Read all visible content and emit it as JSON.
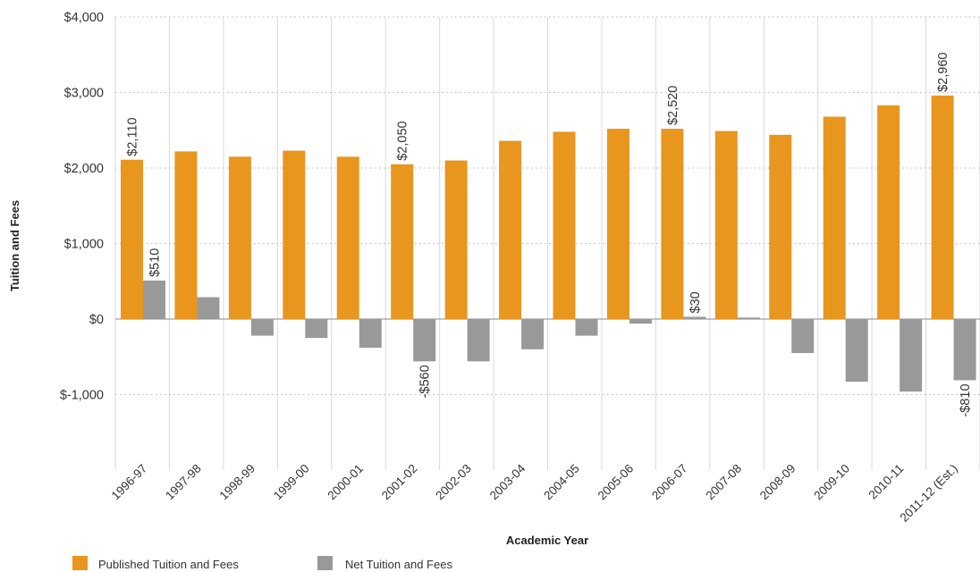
{
  "chart_data": {
    "type": "bar",
    "xlabel": "Academic Year",
    "ylabel": "Tuition and Fees",
    "ylim": [
      -2000,
      4000
    ],
    "yticks": [
      -1000,
      0,
      1000,
      2000,
      3000,
      4000
    ],
    "ytick_labels": [
      "$-1,000",
      "$0",
      "$1,000",
      "$2,000",
      "$3,000",
      "$4,000"
    ],
    "grid": "horizontal dotted",
    "legend_position": "bottom-left",
    "categories": [
      "1996-97",
      "1997-98",
      "1998-99",
      "1999-00",
      "2000-01",
      "2001-02",
      "2002-03",
      "2003-04",
      "2004-05",
      "2005-06",
      "2006-07",
      "2007-08",
      "2008-09",
      "2009-10",
      "2010-11",
      "2011-12 (Est.)"
    ],
    "series": [
      {
        "name": "Published Tuition and Fees",
        "color": "#E8961E",
        "values": [
          2110,
          2220,
          2150,
          2230,
          2150,
          2050,
          2100,
          2360,
          2480,
          2520,
          2520,
          2490,
          2440,
          2680,
          2830,
          2960
        ],
        "data_labels": {
          "0": "$2,110",
          "5": "$2,050",
          "10": "$2,520",
          "15": "$2,960"
        }
      },
      {
        "name": "Net Tuition and Fees",
        "color": "#999999",
        "values": [
          510,
          290,
          -220,
          -250,
          -380,
          -560,
          -560,
          -400,
          -220,
          -60,
          30,
          20,
          -450,
          -830,
          -960,
          -810
        ],
        "data_labels": {
          "0": "$510",
          "5": "-$560",
          "10": "$30",
          "15": "-$810"
        }
      }
    ]
  }
}
